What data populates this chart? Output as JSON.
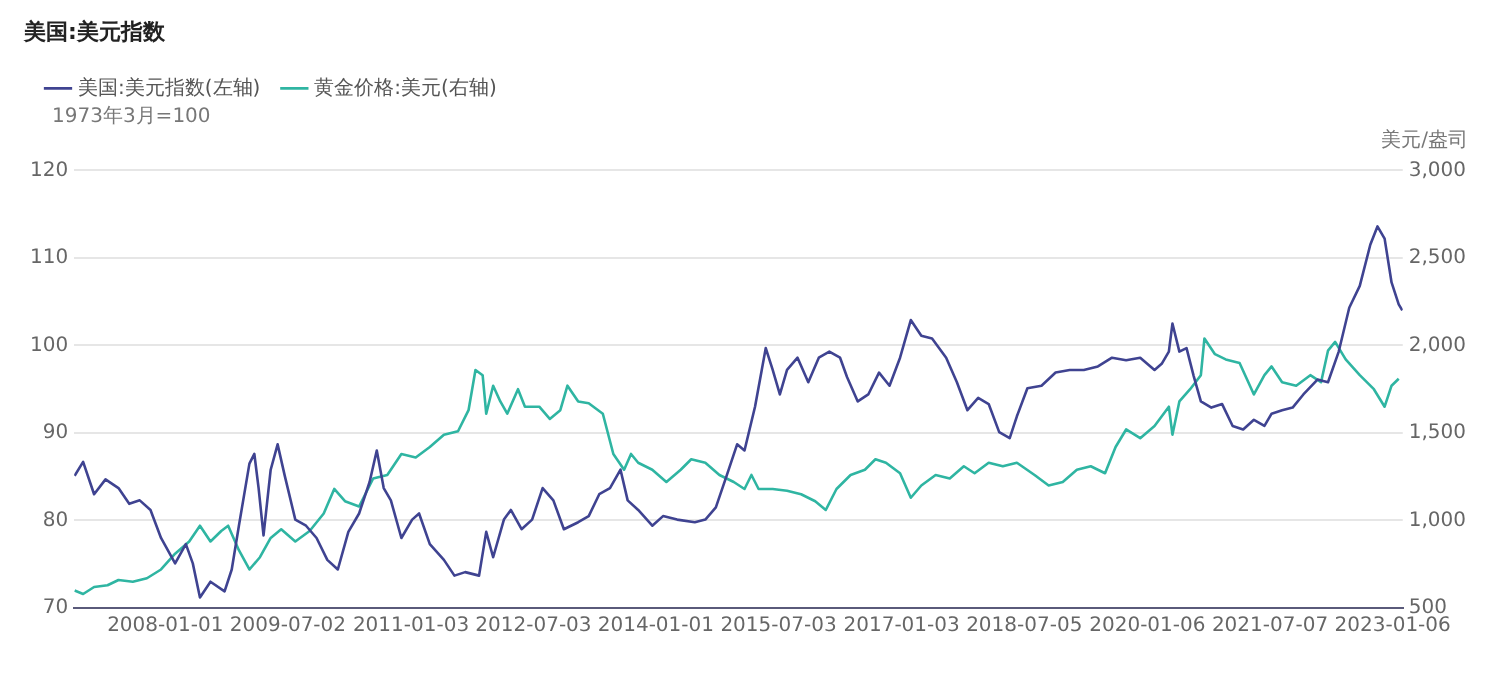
{
  "chart_data": {
    "type": "line",
    "title": "美国:美元指数",
    "ylabel": "1973年3月=100",
    "y2label": "美元/盎司",
    "legend": "top left",
    "grid": "y",
    "xlim": [
      "2006-11-20",
      "2023-02-20"
    ],
    "xticks": [
      "2008-01-01",
      "2009-07-02",
      "2011-01-03",
      "2012-07-03",
      "2014-01-01",
      "2015-07-03",
      "2017-01-03",
      "2018-07-05",
      "2020-01-06",
      "2021-07-07",
      "2023-01-06"
    ],
    "ylim": [
      70,
      120
    ],
    "yticks": [
      70,
      80,
      90,
      100,
      110,
      120
    ],
    "y2lim": [
      500,
      3000
    ],
    "y2ticks": [
      500,
      {
        "value": 1000,
        "label": "1,000"
      },
      {
        "value": 1500,
        "label": "1,500"
      },
      {
        "value": 2000,
        "label": "2,000"
      },
      {
        "value": 2500,
        "label": "2,500"
      },
      {
        "value": 3000,
        "label": "3,000"
      }
    ],
    "series": [
      {
        "name": "美国:美元指数(左轴)",
        "color": "#3f4391",
        "axis": "y",
        "x": [
          "2006-11-22",
          "2006-12-30",
          "2007-02-17",
          "2007-04-09",
          "2007-06-06",
          "2007-07-24",
          "2007-09-09",
          "2007-10-27",
          "2007-12-13",
          "2008-02-14",
          "2008-04-02",
          "2008-05-03",
          "2008-06-04",
          "2008-07-21",
          "2008-09-22",
          "2008-10-24",
          "2008-11-25",
          "2009-01-11",
          "2009-02-02",
          "2009-02-21",
          "2009-03-15",
          "2009-04-16",
          "2009-05-17",
          "2009-06-18",
          "2009-08-04",
          "2009-09-21",
          "2009-11-07",
          "2009-12-25",
          "2010-02-10",
          "2010-03-29",
          "2010-05-16",
          "2010-07-02",
          "2010-08-03",
          "2010-09-03",
          "2010-10-05",
          "2010-11-21",
          "2011-01-08",
          "2011-02-08",
          "2011-03-28",
          "2011-05-30",
          "2011-07-16",
          "2011-09-02",
          "2011-11-03",
          "2011-12-05",
          "2012-01-05",
          "2012-02-22",
          "2012-03-24",
          "2012-05-11",
          "2012-06-27",
          "2012-08-13",
          "2012-09-30",
          "2012-11-16",
          "2013-01-19",
          "2013-03-07",
          "2013-04-23",
          "2013-06-10",
          "2013-07-27",
          "2013-08-28",
          "2013-10-14",
          "2013-12-16",
          "2014-02-02",
          "2014-04-06",
          "2014-06-24",
          "2014-08-10",
          "2014-09-26",
          "2014-11-13",
          "2014-12-30",
          "2015-02-01",
          "2015-03-20",
          "2015-05-07",
          "2015-06-07",
          "2015-07-09",
          "2015-08-10",
          "2015-09-26",
          "2015-11-13",
          "2015-12-30",
          "2016-02-15",
          "2016-04-03",
          "2016-05-04",
          "2016-06-21",
          "2016-08-07",
          "2016-09-24",
          "2016-11-10",
          "2016-12-27",
          "2017-02-13",
          "2017-04-01",
          "2017-05-19",
          "2017-07-21",
          "2017-09-07",
          "2017-10-24",
          "2017-12-11",
          "2018-01-27",
          "2018-03-15",
          "2018-05-01",
          "2018-06-02",
          "2018-07-19",
          "2018-09-20",
          "2018-11-22",
          "2019-01-24",
          "2019-03-28",
          "2019-05-30",
          "2019-08-01",
          "2019-10-03",
          "2019-12-05",
          "2020-02-07",
          "2020-03-10",
          "2020-04-11",
          "2020-04-27",
          "2020-05-28",
          "2020-06-29",
          "2020-07-31",
          "2020-09-01",
          "2020-10-18",
          "2020-12-05",
          "2021-01-21",
          "2021-03-09",
          "2021-04-26",
          "2021-06-12",
          "2021-07-14",
          "2021-08-30",
          "2021-10-16",
          "2021-12-03",
          "2022-02-04",
          "2022-03-23",
          "2022-05-10",
          "2022-06-26",
          "2022-08-12",
          "2022-09-28",
          "2022-10-30",
          "2022-12-01",
          "2023-01-01",
          "2023-02-02",
          "2023-02-18"
        ],
        "values": [
          85.1,
          86.7,
          83,
          84.7,
          83.7,
          81.9,
          82.3,
          81.2,
          78,
          75.1,
          77.3,
          75.1,
          71.2,
          73,
          71.9,
          74.4,
          79.4,
          86.5,
          87.6,
          83.7,
          78.3,
          85.8,
          88.7,
          85.1,
          80.1,
          79.4,
          78,
          75.5,
          74.4,
          78.7,
          80.8,
          84.4,
          88,
          83.7,
          82.3,
          78,
          80.1,
          80.8,
          77.3,
          75.5,
          73.7,
          74.1,
          73.7,
          78.7,
          75.8,
          80.1,
          81.2,
          79,
          80.1,
          83.7,
          82.3,
          79,
          79.8,
          80.5,
          83,
          83.7,
          85.8,
          82.3,
          81.2,
          79.4,
          80.5,
          80.1,
          79.8,
          80.1,
          81.5,
          85.1,
          88.7,
          88,
          93,
          99.7,
          97.2,
          94.4,
          97.2,
          98.6,
          95.8,
          98.6,
          99.3,
          98.6,
          96.4,
          93.6,
          94.4,
          96.9,
          95.4,
          98.6,
          102.9,
          101.1,
          100.8,
          98.6,
          95.8,
          92.6,
          94,
          93.3,
          90.1,
          89.4,
          91.9,
          95.1,
          95.4,
          96.9,
          97.2,
          97.2,
          97.6,
          98.6,
          98.3,
          98.6,
          97.2,
          97.9,
          99.3,
          102.5,
          99.3,
          99.7,
          96.5,
          93.6,
          92.9,
          93.3,
          90.8,
          90.4,
          91.5,
          90.8,
          92.2,
          92.6,
          92.9,
          94.4,
          96.1,
          95.8,
          99.3,
          104.3,
          106.8,
          111.5,
          113.6,
          112.2,
          107.2,
          104.7,
          104
        ]
      },
      {
        "name": "黄金价格:美元(右轴)",
        "color": "#2fb5a2",
        "axis": "y2",
        "x": [
          "2006-11-22",
          "2006-12-30",
          "2007-02-17",
          "2007-04-18",
          "2007-06-06",
          "2007-08-09",
          "2007-10-11",
          "2007-12-13",
          "2008-02-14",
          "2008-04-17",
          "2008-06-04",
          "2008-07-21",
          "2008-09-07",
          "2008-10-08",
          "2008-11-25",
          "2009-01-11",
          "2009-02-27",
          "2009-04-16",
          "2009-06-02",
          "2009-08-04",
          "2009-10-07",
          "2009-12-09",
          "2010-01-25",
          "2010-03-14",
          "2010-05-16",
          "2010-07-18",
          "2010-09-19",
          "2010-11-21",
          "2011-01-24",
          "2011-03-28",
          "2011-05-30",
          "2011-08-01",
          "2011-09-17",
          "2011-10-18",
          "2011-11-19",
          "2011-12-05",
          "2012-01-05",
          "2012-02-06",
          "2012-03-08",
          "2012-04-25",
          "2012-05-26",
          "2012-07-29",
          "2012-09-14",
          "2012-10-31",
          "2012-12-02",
          "2013-01-19",
          "2013-03-07",
          "2013-05-09",
          "2013-06-25",
          "2013-08-12",
          "2013-09-12",
          "2013-10-14",
          "2013-12-16",
          "2014-02-17",
          "2014-04-22",
          "2014-06-08",
          "2014-08-10",
          "2014-10-12",
          "2014-12-15",
          "2015-02-01",
          "2015-03-04",
          "2015-04-05",
          "2015-06-07",
          "2015-08-10",
          "2015-10-12",
          "2015-12-14",
          "2016-01-30",
          "2016-03-18",
          "2016-05-20",
          "2016-07-23",
          "2016-09-08",
          "2016-10-25",
          "2016-12-27",
          "2017-02-13",
          "2017-04-01",
          "2017-06-04",
          "2017-08-06",
          "2017-10-08",
          "2017-11-25",
          "2018-01-27",
          "2018-03-31",
          "2018-06-02",
          "2018-08-20",
          "2018-10-22",
          "2018-12-24",
          "2019-02-25",
          "2019-04-28",
          "2019-07-01",
          "2019-08-17",
          "2019-10-03",
          "2019-12-05",
          "2020-02-07",
          "2020-04-11",
          "2020-04-27",
          "2020-05-28",
          "2020-07-15",
          "2020-09-01",
          "2020-09-17",
          "2020-11-03",
          "2020-12-21",
          "2021-02-21",
          "2021-04-26",
          "2021-06-12",
          "2021-07-14",
          "2021-08-30",
          "2021-11-01",
          "2022-01-03",
          "2022-02-20",
          "2022-03-23",
          "2022-04-24",
          "2022-06-10",
          "2022-08-12",
          "2022-10-14",
          "2022-12-01",
          "2023-01-01",
          "2023-02-02"
        ],
        "values": [
          600,
          580,
          620,
          630,
          660,
          650,
          670,
          720,
          810,
          880,
          970,
          880,
          940,
          970,
          830,
          720,
          790,
          900,
          950,
          880,
          940,
          1040,
          1180,
          1110,
          1080,
          1240,
          1260,
          1380,
          1360,
          1420,
          1490,
          1510,
          1630,
          1860,
          1830,
          1610,
          1770,
          1680,
          1610,
          1750,
          1650,
          1650,
          1580,
          1630,
          1770,
          1680,
          1670,
          1610,
          1380,
          1290,
          1380,
          1330,
          1290,
          1220,
          1290,
          1350,
          1330,
          1260,
          1220,
          1180,
          1260,
          1180,
          1180,
          1170,
          1150,
          1110,
          1060,
          1180,
          1260,
          1290,
          1350,
          1330,
          1270,
          1130,
          1200,
          1260,
          1240,
          1310,
          1270,
          1330,
          1310,
          1330,
          1260,
          1200,
          1220,
          1290,
          1310,
          1270,
          1420,
          1520,
          1470,
          1540,
          1650,
          1490,
          1680,
          1750,
          1830,
          2040,
          1950,
          1920,
          1900,
          1720,
          1830,
          1880,
          1790,
          1770,
          1830,
          1790,
          1970,
          2020,
          1920,
          1830,
          1750,
          1650,
          1770,
          1810
        ]
      }
    ]
  }
}
